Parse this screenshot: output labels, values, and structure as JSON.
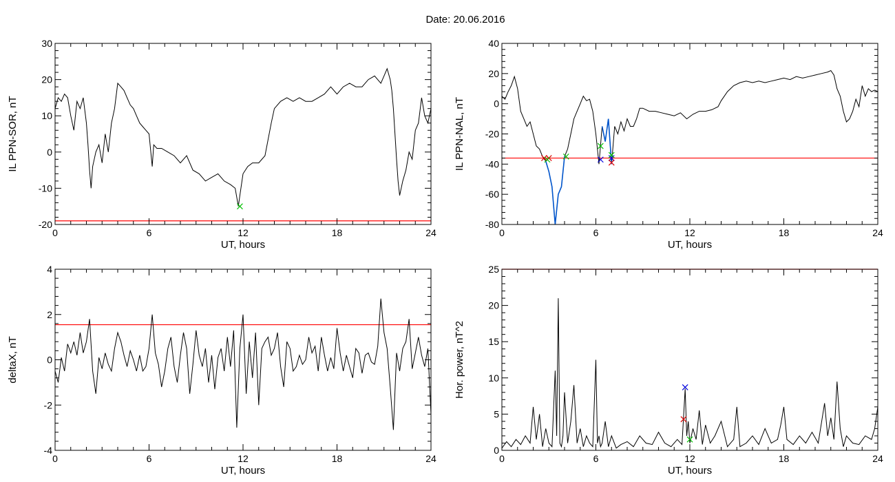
{
  "header": {
    "date_label": "Date:  20.06.2016"
  },
  "chart_data": [
    {
      "type": "line",
      "ylabel": "IL PPN-SOR, nT",
      "xlabel": "UT, hours",
      "xlim": [
        0,
        24
      ],
      "ylim": [
        -20,
        30
      ],
      "xticks": [
        0,
        6,
        12,
        18,
        24
      ],
      "yticks": [
        -20,
        -10,
        0,
        10,
        20,
        30
      ],
      "threshold": -19,
      "threshold_color": "#ff0000",
      "series_color": "#000000",
      "series": [
        {
          "x": [
            0,
            0.2,
            0.4,
            0.6,
            0.8,
            1.0,
            1.2,
            1.4,
            1.6,
            1.8,
            2.0,
            2.1,
            2.2,
            2.3,
            2.4,
            2.5,
            2.6,
            2.8,
            3.0,
            3.2,
            3.4,
            3.6,
            3.8,
            4.0,
            4.2,
            4.4,
            4.6,
            4.8,
            5.0,
            5.2,
            5.4,
            5.6,
            5.8,
            6.0,
            6.2,
            6.3,
            6.5,
            6.8,
            7.2,
            7.6,
            8.0,
            8.4,
            8.8,
            9.2,
            9.6,
            10.0,
            10.4,
            10.8,
            11.2,
            11.5,
            11.7,
            11.8,
            12.0,
            12.3,
            12.6,
            13.0,
            13.4,
            13.8,
            14.0,
            14.4,
            14.8,
            15.2,
            15.6,
            16.0,
            16.4,
            16.8,
            17.2,
            17.6,
            18.0,
            18.4,
            18.8,
            19.2,
            19.6,
            20.0,
            20.4,
            20.8,
            21.0,
            21.2,
            21.4,
            21.5,
            21.6,
            21.8,
            21.9,
            22.0,
            22.2,
            22.4,
            22.6,
            22.8,
            23.0,
            23.2,
            23.4,
            23.6,
            23.8,
            24.0
          ],
          "y": [
            12,
            15,
            14,
            16,
            15,
            10,
            6,
            14,
            12,
            15,
            8,
            2,
            -5,
            -10,
            -4,
            -2,
            0,
            2,
            -3,
            5,
            0,
            8,
            12,
            19,
            18,
            17,
            15,
            13,
            12,
            10,
            8,
            7,
            6,
            5,
            -4,
            2,
            1,
            1,
            0,
            -1,
            -3,
            -1,
            -5,
            -6,
            -8,
            -7,
            -6,
            -8,
            -9,
            -10,
            -15,
            -12,
            -6,
            -4,
            -3,
            -3,
            -1,
            8,
            12,
            14,
            15,
            14,
            15,
            14,
            14,
            15,
            16,
            18,
            16,
            18,
            19,
            18,
            18,
            20,
            21,
            19,
            21,
            23,
            20,
            17,
            12,
            -2,
            -8,
            -12,
            -8,
            -5,
            0,
            -2,
            6,
            8,
            15,
            10,
            8,
            12
          ]
        }
      ],
      "markers": [
        {
          "x": 11.8,
          "y": -15,
          "color": "#00c000"
        }
      ]
    },
    {
      "type": "line",
      "ylabel": "IL PPN-NAL, nT",
      "xlabel": "UT, hours",
      "xlim": [
        0,
        24
      ],
      "ylim": [
        -80,
        40
      ],
      "xticks": [
        0,
        6,
        12,
        18,
        24
      ],
      "yticks": [
        -80,
        -60,
        -40,
        -20,
        0,
        20,
        40
      ],
      "threshold": -36,
      "threshold_color": "#ff0000",
      "series_color": "#000000",
      "series": [
        {
          "x": [
            0,
            0.2,
            0.4,
            0.6,
            0.8,
            1.0,
            1.2,
            1.4,
            1.6,
            1.8,
            2.0,
            2.2,
            2.4,
            2.6,
            2.8,
            3.0,
            3.2,
            3.4,
            3.6,
            3.8,
            4.0,
            4.2,
            4.4,
            4.6,
            4.8,
            5.0,
            5.2,
            5.4,
            5.6,
            5.8,
            6.0,
            6.2,
            6.4,
            6.6,
            6.8,
            7.0,
            7.2,
            7.4,
            7.6,
            7.8,
            8.0,
            8.2,
            8.4,
            8.6,
            8.8,
            9.0,
            9.4,
            9.8,
            10.2,
            10.6,
            11.0,
            11.4,
            11.8,
            12.2,
            12.6,
            13.0,
            13.4,
            13.8,
            14.0,
            14.4,
            14.8,
            15.2,
            15.6,
            16.0,
            16.4,
            16.8,
            17.2,
            17.6,
            18.0,
            18.4,
            18.8,
            19.2,
            19.6,
            20.0,
            20.4,
            20.8,
            21.0,
            21.2,
            21.4,
            21.6,
            21.8,
            22.0,
            22.2,
            22.4,
            22.6,
            22.8,
            23.0,
            23.2,
            23.4,
            23.6,
            23.8,
            24.0
          ],
          "y": [
            5,
            3,
            8,
            12,
            18,
            10,
            -5,
            -10,
            -15,
            -12,
            -20,
            -28,
            -30,
            -35,
            -38,
            -45,
            -55,
            -80,
            -60,
            -55,
            -35,
            -30,
            -20,
            -10,
            -5,
            0,
            5,
            2,
            3,
            -5,
            -20,
            -40,
            -15,
            -25,
            -10,
            -40,
            -15,
            -20,
            -12,
            -18,
            -10,
            -15,
            -15,
            -10,
            -3,
            -3,
            -5,
            -5,
            -6,
            -7,
            -8,
            -6,
            -10,
            -7,
            -5,
            -5,
            -4,
            -2,
            2,
            8,
            12,
            14,
            15,
            14,
            15,
            14,
            15,
            16,
            17,
            16,
            18,
            17,
            18,
            19,
            20,
            21,
            22,
            19,
            10,
            5,
            -5,
            -12,
            -10,
            -5,
            3,
            -2,
            12,
            5,
            10,
            8,
            9,
            8
          ]
        }
      ],
      "markers": [
        {
          "x": 2.7,
          "y": -36,
          "color": "#dd0000"
        },
        {
          "x": 3.0,
          "y": -36,
          "color": "#dd0000"
        },
        {
          "x": 2.9,
          "y": -37,
          "color": "#00c000"
        },
        {
          "x": 4.1,
          "y": -35,
          "color": "#00c000"
        },
        {
          "x": 6.3,
          "y": -37,
          "color": "#0000dd"
        },
        {
          "x": 6.3,
          "y": -28,
          "color": "#00c000"
        },
        {
          "x": 7.0,
          "y": -36,
          "color": "#0000dd"
        },
        {
          "x": 7.0,
          "y": -39,
          "color": "#dd0000"
        },
        {
          "x": 7.0,
          "y": -34,
          "color": "#00c000"
        }
      ],
      "highlight_color": "#0055cc",
      "highlight_ranges": [
        [
          2.7,
          4.1
        ],
        [
          6.3,
          7.0
        ]
      ]
    },
    {
      "type": "line",
      "ylabel": "deltaX, nT",
      "xlabel": "UT, hours",
      "xlim": [
        0,
        24
      ],
      "ylim": [
        -4,
        4
      ],
      "xticks": [
        0,
        6,
        12,
        18,
        24
      ],
      "yticks": [
        -4,
        -2,
        0,
        2,
        4
      ],
      "threshold": 1.55,
      "threshold_color": "#ff0000",
      "series_color": "#000000",
      "series": [
        {
          "x": [
            0,
            0.2,
            0.4,
            0.6,
            0.8,
            1.0,
            1.2,
            1.4,
            1.6,
            1.8,
            2.0,
            2.2,
            2.4,
            2.6,
            2.8,
            3.0,
            3.2,
            3.4,
            3.6,
            3.8,
            4.0,
            4.2,
            4.4,
            4.6,
            4.8,
            5.0,
            5.2,
            5.4,
            5.6,
            5.8,
            6.0,
            6.2,
            6.4,
            6.6,
            6.8,
            7.0,
            7.2,
            7.4,
            7.6,
            7.8,
            8.0,
            8.2,
            8.4,
            8.6,
            8.8,
            9.0,
            9.2,
            9.4,
            9.6,
            9.8,
            10.0,
            10.2,
            10.4,
            10.6,
            10.8,
            11.0,
            11.2,
            11.4,
            11.6,
            11.8,
            12.0,
            12.2,
            12.4,
            12.6,
            12.8,
            13.0,
            13.2,
            13.4,
            13.6,
            13.8,
            14.0,
            14.2,
            14.4,
            14.6,
            14.8,
            15.0,
            15.2,
            15.4,
            15.6,
            15.8,
            16.0,
            16.2,
            16.4,
            16.6,
            16.8,
            17.0,
            17.2,
            17.4,
            17.6,
            17.8,
            18.0,
            18.2,
            18.4,
            18.6,
            18.8,
            19.0,
            19.2,
            19.4,
            19.6,
            19.8,
            20.0,
            20.2,
            20.4,
            20.6,
            20.8,
            21.0,
            21.2,
            21.4,
            21.6,
            21.8,
            22.0,
            22.2,
            22.4,
            22.6,
            22.8,
            23.0,
            23.2,
            23.4,
            23.6,
            23.8,
            24.0
          ],
          "y": [
            -0.5,
            -1,
            0.1,
            -0.5,
            0.7,
            0.3,
            0.8,
            0.2,
            1.2,
            0.3,
            0.8,
            1.8,
            -0.5,
            -1.5,
            0.1,
            -0.4,
            0.3,
            -0.2,
            -0.5,
            0.5,
            1.2,
            0.8,
            0.2,
            -0.3,
            0.4,
            0.0,
            -0.5,
            0.2,
            -0.5,
            -0.3,
            0.5,
            2.0,
            0.3,
            -0.2,
            -1.2,
            -0.5,
            0.5,
            1.0,
            -0.3,
            -1.0,
            0.2,
            1.2,
            0.5,
            -1.5,
            -0.2,
            1.3,
            0.2,
            -0.3,
            0.5,
            -1.0,
            0.2,
            -1.3,
            0.1,
            0.5,
            -0.5,
            1.0,
            -0.3,
            1.3,
            -3.0,
            0.5,
            2.0,
            -1.5,
            0.8,
            -0.8,
            1.2,
            -2.0,
            0.5,
            0.8,
            1.0,
            0.2,
            0.5,
            1.2,
            -0.3,
            -1.2,
            0.8,
            0.5,
            -0.5,
            -0.3,
            0.2,
            -0.2,
            0.0,
            1.0,
            0.3,
            0.6,
            -0.5,
            1.0,
            0.2,
            -0.5,
            0.1,
            -0.4,
            1.4,
            0.3,
            -0.5,
            0.2,
            -0.3,
            -0.8,
            0.5,
            0.3,
            -0.6,
            0.2,
            0.3,
            -0.1,
            -0.2,
            0.6,
            2.7,
            1.2,
            0.5,
            -1.2,
            -3.1,
            0.3,
            -0.5,
            0.5,
            0.8,
            1.8,
            -0.4,
            0.3,
            1.0,
            0.2,
            -0.3,
            0.5,
            -2.4
          ]
        }
      ],
      "markers": []
    },
    {
      "type": "line",
      "ylabel": "Hor. power, nT^2",
      "xlabel": "UT, hours",
      "xlim": [
        0,
        24
      ],
      "ylim": [
        0,
        25
      ],
      "xticks": [
        0,
        6,
        12,
        18,
        24
      ],
      "yticks": [
        0,
        5,
        10,
        15,
        20,
        25
      ],
      "threshold": 25,
      "threshold_color": "#ff0000",
      "series_color": "#000000",
      "series": [
        {
          "x": [
            0,
            0.3,
            0.6,
            0.9,
            1.2,
            1.5,
            1.8,
            2.0,
            2.2,
            2.4,
            2.6,
            2.8,
            3.0,
            3.2,
            3.4,
            3.5,
            3.6,
            3.7,
            3.8,
            3.9,
            4.0,
            4.2,
            4.4,
            4.6,
            4.8,
            5.0,
            5.2,
            5.4,
            5.6,
            5.8,
            6.0,
            6.1,
            6.2,
            6.3,
            6.4,
            6.6,
            6.8,
            7.0,
            7.3,
            7.6,
            8.0,
            8.4,
            8.8,
            9.2,
            9.6,
            10.0,
            10.4,
            10.8,
            11.2,
            11.5,
            11.7,
            11.8,
            11.9,
            12.0,
            12.2,
            12.4,
            12.6,
            12.8,
            13.0,
            13.3,
            13.6,
            14.0,
            14.4,
            14.8,
            15.0,
            15.2,
            15.6,
            16.0,
            16.4,
            16.8,
            17.2,
            17.6,
            17.8,
            18.0,
            18.2,
            18.6,
            19.0,
            19.4,
            19.8,
            20.2,
            20.6,
            20.8,
            21.0,
            21.2,
            21.4,
            21.6,
            21.8,
            22.0,
            22.4,
            22.8,
            23.2,
            23.6,
            23.8,
            24.0
          ],
          "y": [
            0.3,
            1.2,
            0.5,
            1.5,
            0.8,
            2.0,
            1.0,
            6.0,
            1.5,
            5.0,
            0.5,
            3.0,
            1.0,
            0.5,
            11.0,
            2.0,
            21.0,
            1.0,
            0.5,
            2.0,
            8.0,
            1.0,
            4.0,
            9.0,
            1.0,
            3.0,
            0.5,
            2.0,
            1.0,
            0.5,
            12.5,
            1.0,
            2.0,
            0.5,
            1.0,
            4.0,
            0.5,
            2.0,
            0.3,
            0.8,
            1.2,
            0.5,
            2.0,
            1.0,
            0.8,
            2.5,
            1.0,
            0.5,
            1.5,
            0.8,
            8.5,
            2.0,
            4.0,
            1.0,
            3.0,
            1.5,
            5.5,
            0.8,
            3.5,
            1.0,
            2.0,
            4.0,
            0.5,
            1.5,
            6.0,
            0.5,
            1.0,
            2.0,
            0.8,
            3.0,
            1.0,
            1.5,
            3.5,
            6.0,
            1.5,
            0.8,
            2.0,
            1.0,
            2.5,
            1.0,
            6.5,
            2.0,
            4.5,
            1.5,
            9.5,
            3.0,
            0.5,
            2.0,
            1.0,
            0.8,
            2.0,
            1.5,
            3.0,
            6.0
          ]
        }
      ],
      "markers": [
        {
          "x": 11.7,
          "y": 8.7,
          "color": "#0000dd"
        },
        {
          "x": 11.6,
          "y": 4.3,
          "color": "#dd0000"
        },
        {
          "x": 12.0,
          "y": 1.5,
          "color": "#00c000"
        }
      ]
    }
  ]
}
